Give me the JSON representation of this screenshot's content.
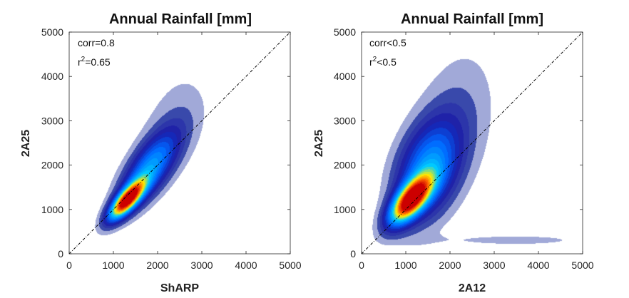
{
  "colors": {
    "background": "#ffffff",
    "axis": "#262626",
    "diagonal": "#000000",
    "colormap": [
      "#ffffff",
      "#e8eaf6",
      "#3949ab",
      "#1a1aa8",
      "#0066ff",
      "#00ccff",
      "#ffee00",
      "#ff6600",
      "#cc0000"
    ]
  },
  "chart_data": [
    {
      "type": "heatmap",
      "title": "Annual Rainfall [mm]",
      "xlabel": "ShARP",
      "ylabel": "2A25",
      "xlim": [
        0,
        5000
      ],
      "ylim": [
        0,
        5000
      ],
      "xticks": [
        0,
        1000,
        2000,
        3000,
        4000,
        5000
      ],
      "yticks": [
        0,
        1000,
        2000,
        3000,
        4000,
        5000
      ],
      "reference_line": "1:1",
      "annotations": [
        {
          "main": "corr=0.8"
        },
        {
          "main": "r",
          "sup": "2",
          "rest": "=0.65"
        }
      ],
      "density_components": [
        {
          "cx": 1300,
          "cy": 1200,
          "major_sd": 380,
          "minor_sd": 140,
          "angle_deg": 48,
          "weight": 1.0
        },
        {
          "cx": 1800,
          "cy": 1900,
          "major_sd": 700,
          "minor_sd": 280,
          "angle_deg": 55,
          "weight": 0.45
        },
        {
          "cx": 2400,
          "cy": 3000,
          "major_sd": 900,
          "minor_sd": 500,
          "angle_deg": 70,
          "weight": 0.07
        }
      ]
    },
    {
      "type": "heatmap",
      "title": "Annual Rainfall [mm]",
      "xlabel": "2A12",
      "ylabel": "2A25",
      "xlim": [
        0,
        5000
      ],
      "ylim": [
        0,
        5000
      ],
      "xticks": [
        0,
        1000,
        2000,
        3000,
        4000,
        5000
      ],
      "yticks": [
        0,
        1000,
        2000,
        3000,
        4000,
        5000
      ],
      "reference_line": "1:1",
      "annotations": [
        {
          "main": "corr<0.5"
        },
        {
          "main": "r",
          "sup": "2",
          "rest": "<0.5"
        }
      ],
      "density_components": [
        {
          "cx": 1100,
          "cy": 1200,
          "major_sd": 450,
          "minor_sd": 200,
          "angle_deg": 50,
          "weight": 1.0
        },
        {
          "cx": 1500,
          "cy": 1900,
          "major_sd": 800,
          "minor_sd": 450,
          "angle_deg": 70,
          "weight": 0.45
        },
        {
          "cx": 2200,
          "cy": 3200,
          "major_sd": 1100,
          "minor_sd": 600,
          "angle_deg": 80,
          "weight": 0.08
        },
        {
          "cx": 3500,
          "cy": 300,
          "major_sd": 1400,
          "minor_sd": 110,
          "angle_deg": 0,
          "weight": 0.06
        }
      ]
    }
  ]
}
